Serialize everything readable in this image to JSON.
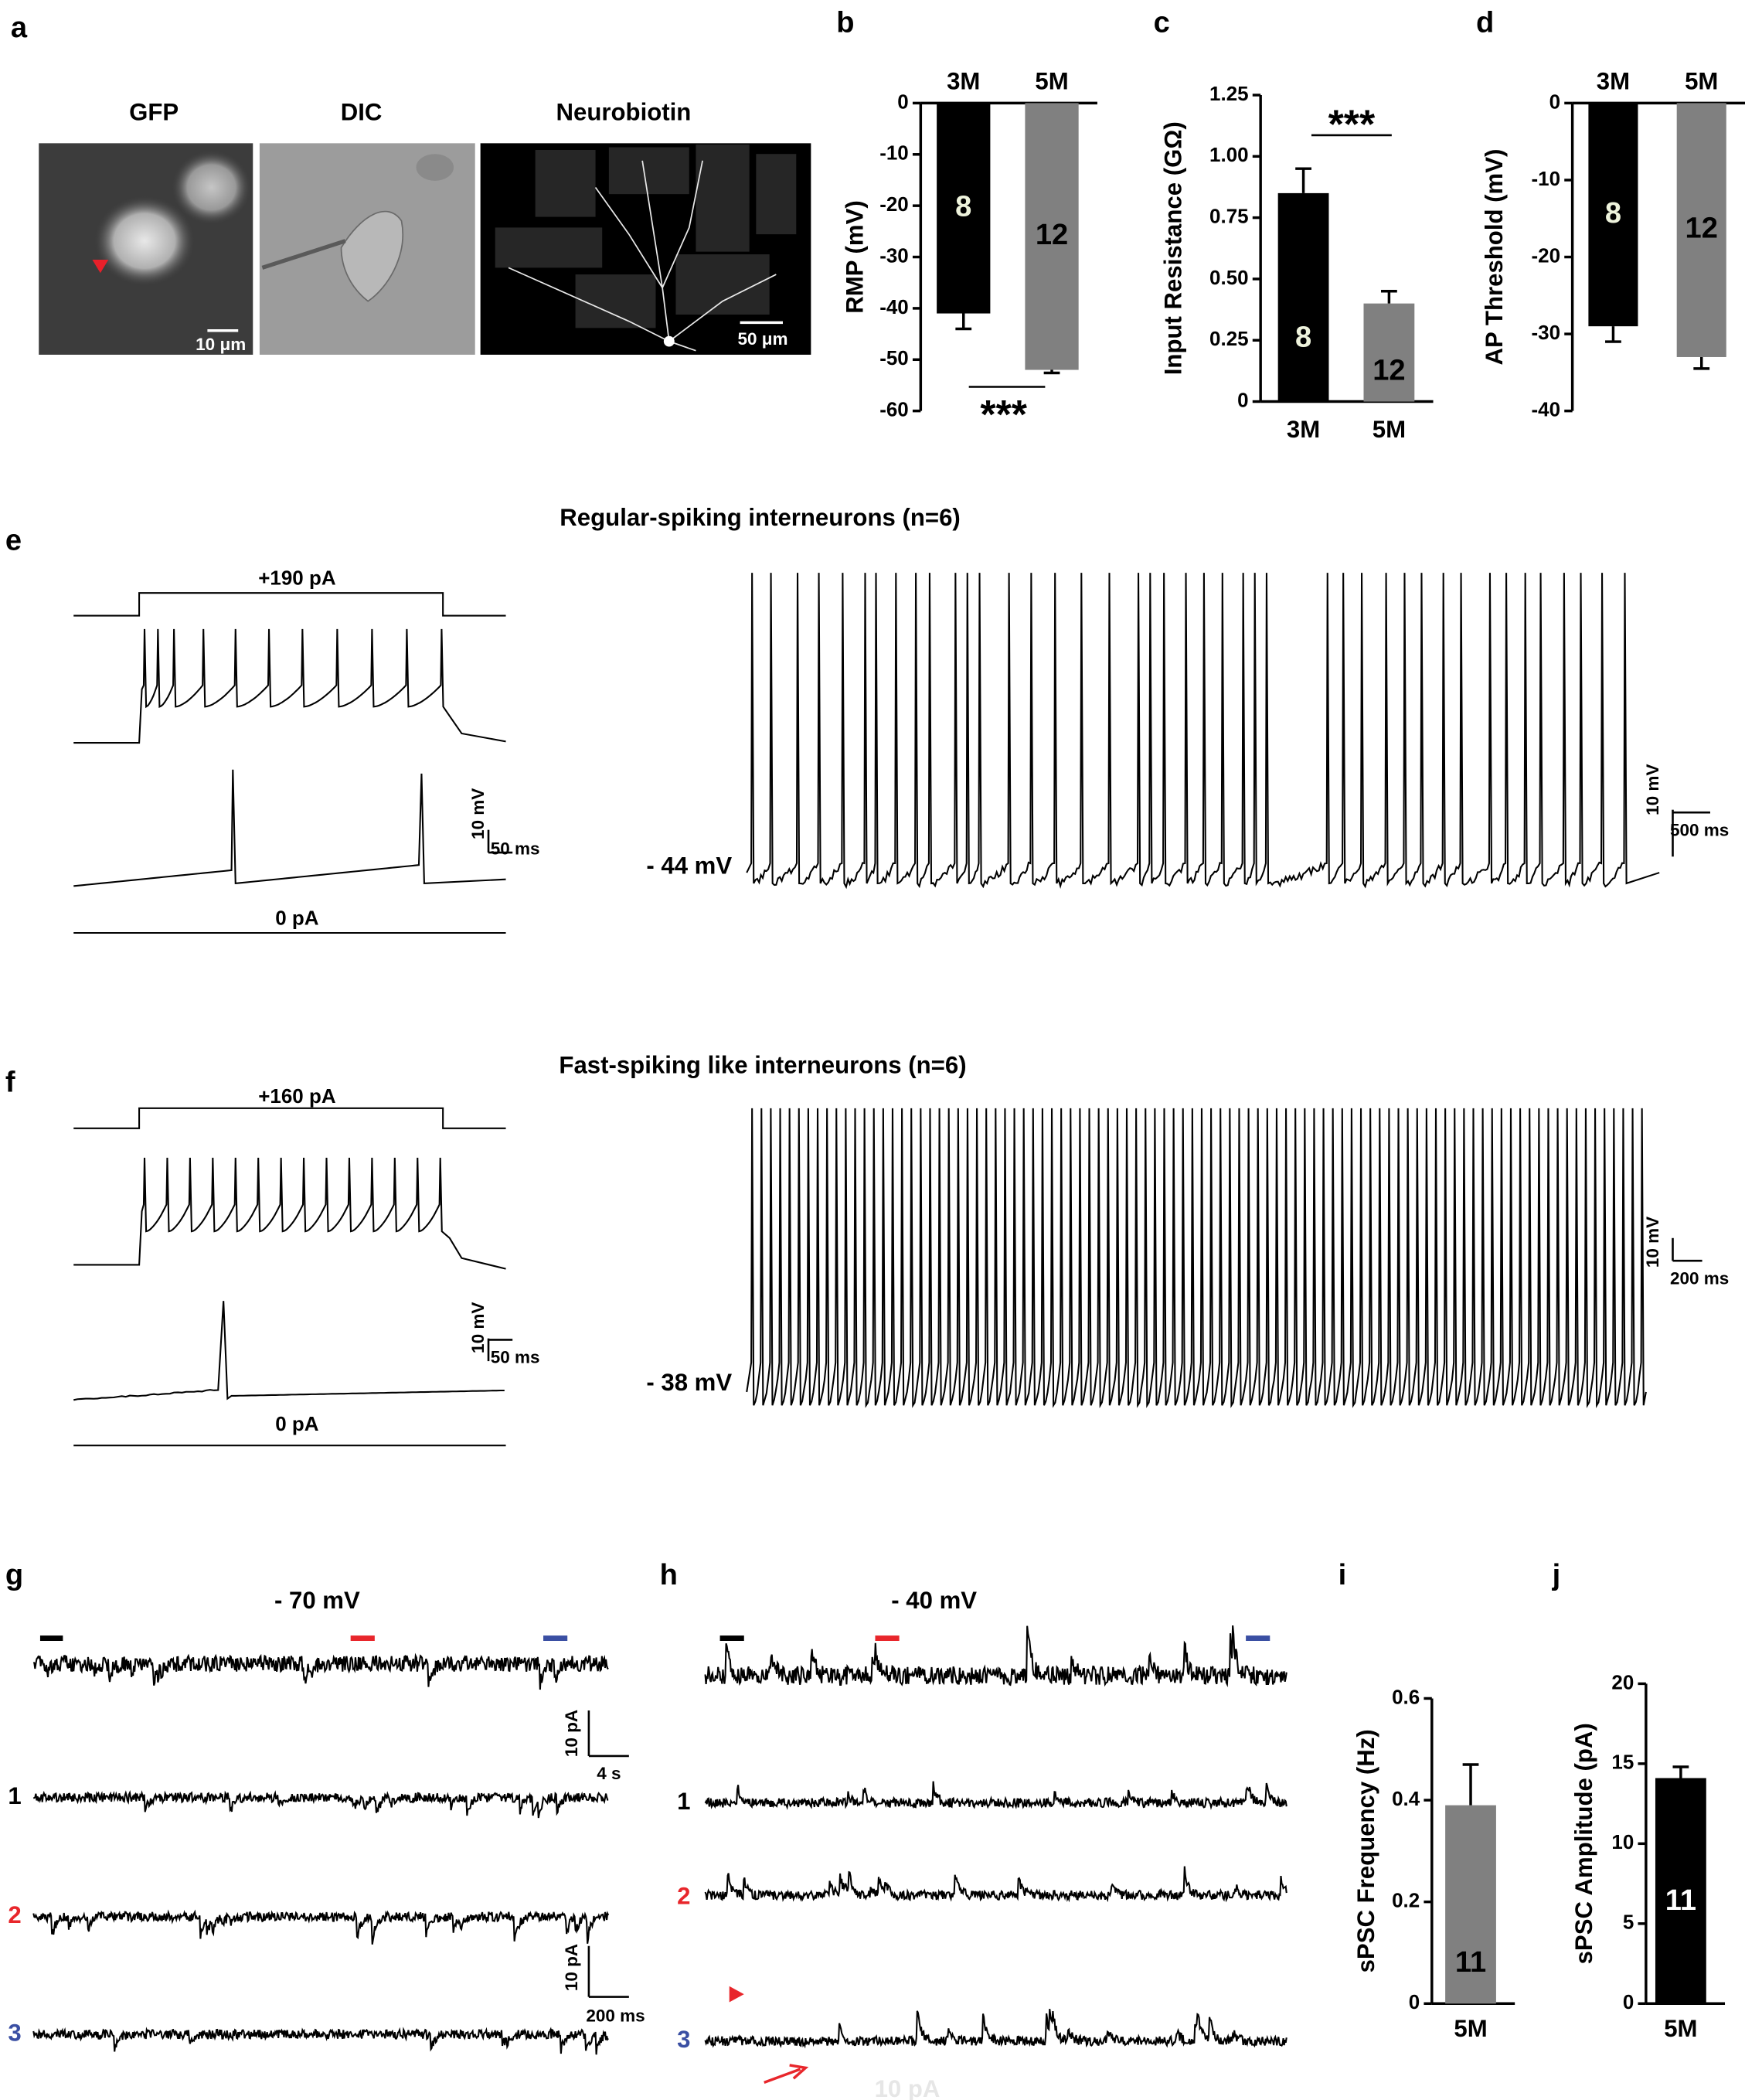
{
  "panel_labels": [
    "a",
    "b",
    "c",
    "d",
    "e",
    "f",
    "g",
    "h",
    "i",
    "j"
  ],
  "panel_a": {
    "image_titles": [
      "GFP",
      "DIC",
      "Neurobiotin"
    ],
    "scale_bars": [
      "10 μm",
      "50 μm"
    ]
  },
  "chart_data": [
    {
      "type": "bar",
      "ylabel": "RMP (mV)",
      "categories": [
        "3M",
        "5M"
      ],
      "values": [
        -41,
        -52
      ],
      "errors": [
        3,
        0.6
      ],
      "n_labels": [
        "8",
        "12"
      ],
      "colors": [
        "#000000",
        "#808080"
      ],
      "ylim": [
        -60,
        0
      ],
      "yticks": [
        0,
        -10,
        -20,
        -30,
        -40,
        -50,
        -60
      ],
      "significance": "***"
    },
    {
      "type": "bar",
      "ylabel": "Input Resistance (GΩ)",
      "categories": [
        "3M",
        "5M"
      ],
      "values": [
        0.85,
        0.4
      ],
      "errors": [
        0.1,
        0.05
      ],
      "n_labels": [
        "8",
        "12"
      ],
      "colors": [
        "#000000",
        "#808080"
      ],
      "ylim": [
        0,
        1.25
      ],
      "yticks": [
        0,
        0.25,
        {
          "value": 0.5,
          "label": "0.50"
        },
        0.75,
        {
          "value": 1,
          "label": "1.00"
        },
        1.25
      ],
      "significance": "***"
    },
    {
      "type": "bar",
      "ylabel": "AP Threshold (mV)",
      "categories": [
        "3M",
        "5M"
      ],
      "values": [
        -29,
        -33
      ],
      "errors": [
        2,
        1.5
      ],
      "n_labels": [
        "8",
        "12"
      ],
      "colors": [
        "#000000",
        "#808080"
      ],
      "ylim": [
        -40,
        0
      ],
      "yticks": [
        0,
        -10,
        -20,
        -30,
        -40
      ]
    },
    {
      "type": "bar",
      "ylabel": "sPSC Frequency (Hz)",
      "categories": [
        "5M"
      ],
      "values": [
        0.39
      ],
      "errors": [
        0.08
      ],
      "n_labels": [
        "11"
      ],
      "colors": [
        "#808080"
      ],
      "ylim": [
        0,
        0.6
      ],
      "yticks": [
        0,
        0.2,
        0.4,
        0.6
      ]
    },
    {
      "type": "bar",
      "ylabel": "sPSC Amplitude (pA)",
      "categories": [
        "5M"
      ],
      "values": [
        14.1
      ],
      "errors": [
        0.7
      ],
      "n_labels": [
        "11"
      ],
      "colors": [
        "#000000"
      ],
      "ylim": [
        0,
        20
      ],
      "yticks": [
        0,
        5,
        10,
        15,
        20
      ]
    }
  ],
  "panel_e": {
    "title": "Regular-spiking interneurons (n=6)",
    "step_current": "+190 pA",
    "rest_current": "0 pA",
    "scale_left": [
      "10 mV",
      "50 ms"
    ],
    "potential": "- 44 mV",
    "scale_right": [
      "10 mV",
      "500 ms"
    ]
  },
  "panel_f": {
    "title": "Fast-spiking like interneurons (n=6)",
    "step_current": "+160 pA",
    "rest_current": "0 pA",
    "scale_left": [
      "10 mV",
      "50 ms"
    ],
    "potential": "- 38 mV",
    "scale_right": [
      "10 mV",
      "200 ms"
    ]
  },
  "panel_g": {
    "holding": "- 70 mV",
    "scale_top": [
      "10 pA",
      "4 s"
    ],
    "rows": [
      "1",
      "2",
      "3"
    ],
    "scale_bottom": [
      "10 pA",
      "200 ms"
    ]
  },
  "panel_h": {
    "holding": "- 40 mV",
    "rows": [
      "1",
      "2",
      "3"
    ],
    "scale_bottom": [
      "10 pA"
    ]
  }
}
